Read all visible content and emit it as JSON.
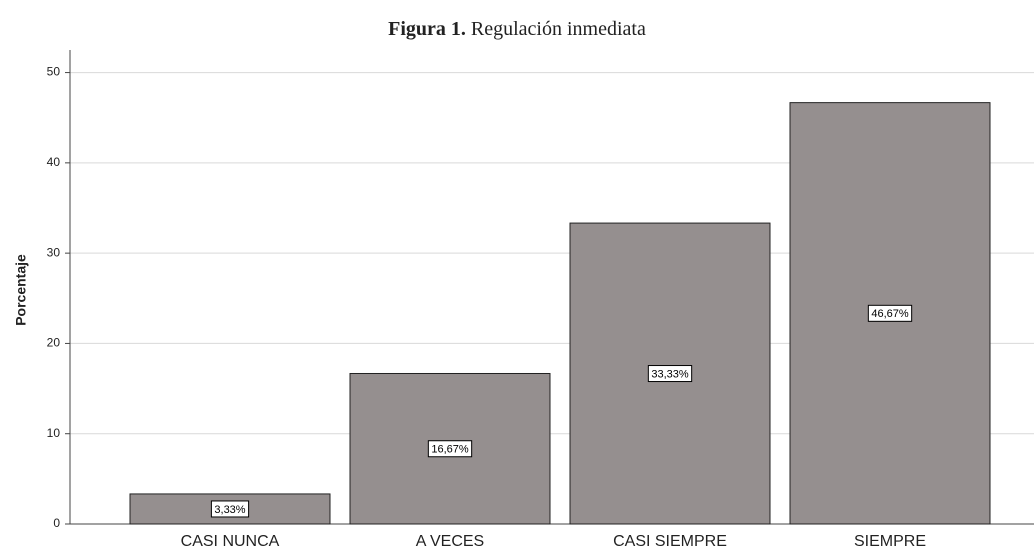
{
  "chart_data": {
    "type": "bar",
    "title_prefix": "Figura 1.",
    "title": "Regulación inmediata",
    "ylabel": "Porcentaje",
    "categories": [
      "CASI NUNCA",
      "A VECES",
      "CASI SIEMPRE",
      "SIEMPRE"
    ],
    "values": [
      3.33,
      16.67,
      33.33,
      46.67
    ],
    "value_labels": [
      "3,33%",
      "16,67%",
      "33,33%",
      "46,67%"
    ],
    "color": "#958f8f",
    "ylim": [
      0,
      52.5
    ],
    "yticks": [
      0,
      10,
      20,
      30,
      40,
      50
    ],
    "grid": true
  }
}
